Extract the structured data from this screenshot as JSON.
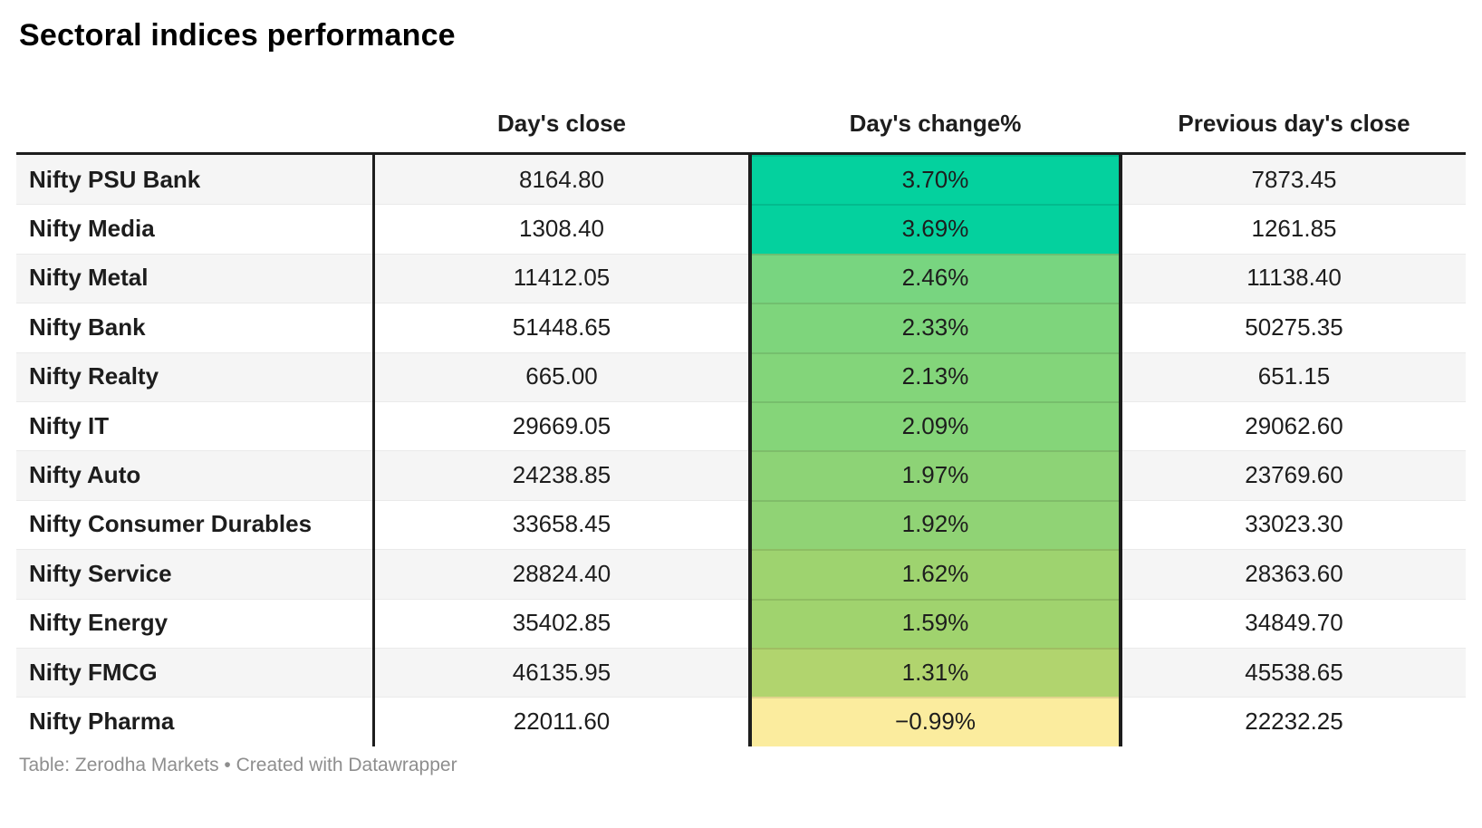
{
  "title": "Sectoral indices performance",
  "header": {
    "col_close": "Day's close",
    "col_change": "Day's change%",
    "col_prev": "Previous day's close"
  },
  "footer": "Table: Zerodha Markets • Created with Datawrapper",
  "colors": {
    "positive_high": "#04d19e",
    "negative": "#fbec9e",
    "rule": "#1d1d1d",
    "stripe": "#f5f5f5",
    "footer_text": "#8e8e8e"
  },
  "chart_data": {
    "type": "table",
    "title": "Sectoral indices performance",
    "columns": [
      "Day's close",
      "Day's change%",
      "Previous day's close"
    ],
    "rows": [
      {
        "name": "Nifty PSU Bank",
        "close": "8164.80",
        "change": "3.70%",
        "prev": "7873.45",
        "change_color": "#04d19e"
      },
      {
        "name": "Nifty Media",
        "close": "1308.40",
        "change": "3.69%",
        "prev": "1261.85",
        "change_color": "#04d19e"
      },
      {
        "name": "Nifty Metal",
        "close": "11412.05",
        "change": "2.46%",
        "prev": "11138.40",
        "change_color": "#78d580"
      },
      {
        "name": "Nifty Bank",
        "close": "51448.65",
        "change": "2.33%",
        "prev": "50275.35",
        "change_color": "#7ed57c"
      },
      {
        "name": "Nifty Realty",
        "close": "665.00",
        "change": "2.13%",
        "prev": "651.15",
        "change_color": "#83d57a"
      },
      {
        "name": "Nifty IT",
        "close": "29669.05",
        "change": "2.09%",
        "prev": "29062.60",
        "change_color": "#85d579"
      },
      {
        "name": "Nifty Auto",
        "close": "24238.85",
        "change": "1.97%",
        "prev": "23769.60",
        "change_color": "#8dd376"
      },
      {
        "name": "Nifty Consumer Durables",
        "close": "33658.45",
        "change": "1.92%",
        "prev": "33023.30",
        "change_color": "#90d375"
      },
      {
        "name": "Nifty Service",
        "close": "28824.40",
        "change": "1.62%",
        "prev": "28363.60",
        "change_color": "#9ed36f"
      },
      {
        "name": "Nifty Energy",
        "close": "35402.85",
        "change": "1.59%",
        "prev": "34849.70",
        "change_color": "#a0d36e"
      },
      {
        "name": "Nifty FMCG",
        "close": "46135.95",
        "change": "1.31%",
        "prev": "45538.65",
        "change_color": "#b1d46e"
      },
      {
        "name": "Nifty Pharma",
        "close": "22011.60",
        "change": "−0.99%",
        "prev": "22232.25",
        "change_color": "#fbec9e"
      }
    ]
  }
}
